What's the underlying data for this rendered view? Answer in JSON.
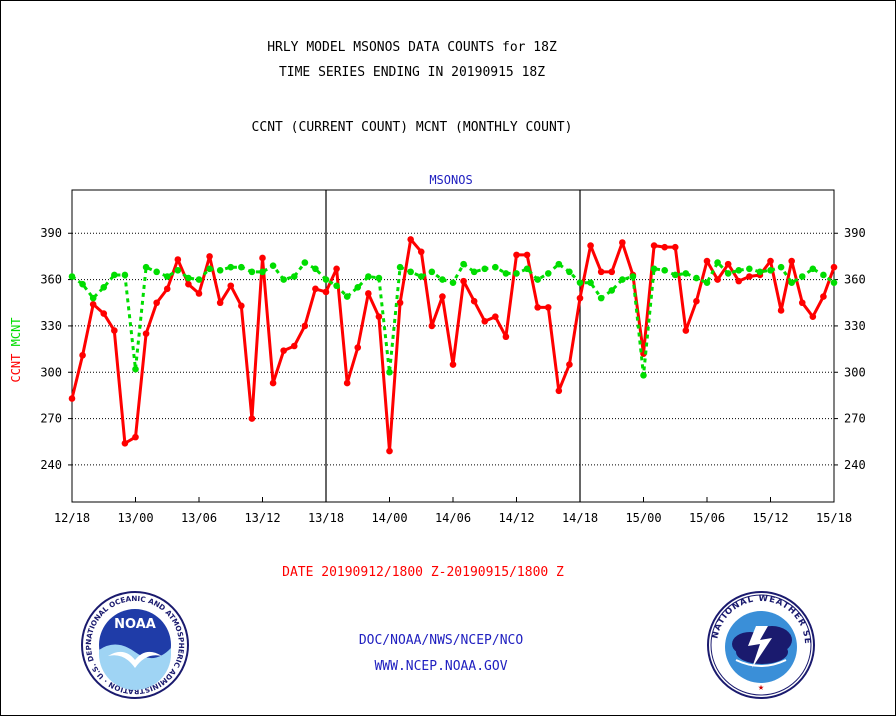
{
  "header": {
    "title_line1": "HRLY MODEL MSONOS DATA COUNTS for 18Z",
    "title_line2": "TIME SERIES ENDING IN 20190915 18Z",
    "subtitle": "CCNT (CURRENT COUNT) MCNT (MONTHLY COUNT)"
  },
  "footer": {
    "date_range": "DATE 20190912/1800 Z-20190915/1800 Z",
    "org_line": "DOC/NOAA/NWS/NCEP/NCO",
    "url_line": "WWW.NCEP.NOAA.GOV",
    "noaa_logo_text": "NOAA",
    "noaa_ring_text": "NATIONAL OCEANIC AND ATMOSPHERIC ADMINISTRATION · U.S. DEPARTMENT OF COMMERCE",
    "nws_ring_text": "NATIONAL WEATHER SERVICE"
  },
  "colors": {
    "ccnt": "#ff0000",
    "mcnt": "#00dd00",
    "label_blue": "#2020c0"
  },
  "chart_data": {
    "type": "line",
    "title": "MSONOS",
    "ylabel_parts": [
      {
        "text": "CCNT",
        "color": "#ff0000"
      },
      {
        "text": "MCNT",
        "color": "#00dd00"
      }
    ],
    "ylim": [
      216,
      418
    ],
    "yticks": [
      240,
      270,
      300,
      330,
      360,
      390
    ],
    "xlim": [
      0,
      72
    ],
    "xtick_labels": [
      "12/18",
      "13/00",
      "13/06",
      "13/12",
      "13/18",
      "14/00",
      "14/06",
      "14/12",
      "14/18",
      "15/00",
      "15/06",
      "15/12",
      "15/18"
    ],
    "xtick_step_hours": 6,
    "day_dividers_hours": [
      24,
      48
    ],
    "grid": true,
    "grid_style": "dotted horizontal",
    "series": [
      {
        "name": "CCNT",
        "color": "#ff0000",
        "style": "solid line with circle markers",
        "values": [
          283,
          311,
          344,
          338,
          327,
          254,
          258,
          325,
          345,
          354,
          373,
          357,
          351,
          375,
          345,
          356,
          343,
          270,
          374,
          293,
          314,
          317,
          330,
          354,
          352,
          367,
          293,
          316,
          351,
          336,
          249,
          345,
          386,
          378,
          330,
          349,
          305,
          359,
          346,
          333,
          336,
          323,
          376,
          376,
          342,
          342,
          288,
          305,
          348,
          382,
          365,
          365,
          384,
          363,
          312,
          382,
          381,
          381,
          327,
          346,
          372,
          360,
          370,
          359,
          362,
          363,
          372,
          340,
          372,
          345,
          336,
          349,
          368
        ]
      },
      {
        "name": "MCNT",
        "color": "#00dd00",
        "style": "dashed line with circle markers",
        "values": [
          362,
          357,
          348,
          355,
          363,
          363,
          302,
          368,
          365,
          362,
          366,
          361,
          360,
          367,
          366,
          368,
          368,
          365,
          365,
          369,
          360,
          362,
          371,
          367,
          360,
          356,
          349,
          355,
          362,
          361,
          300,
          368,
          365,
          362,
          365,
          360,
          358,
          370,
          365,
          367,
          368,
          364,
          364,
          367,
          360,
          364,
          370,
          365,
          358,
          358,
          348,
          353,
          360,
          362,
          298,
          367,
          366,
          363,
          364,
          361,
          358,
          371,
          364,
          366,
          367,
          365,
          366,
          368,
          358,
          362,
          367,
          363,
          358
        ]
      }
    ]
  }
}
